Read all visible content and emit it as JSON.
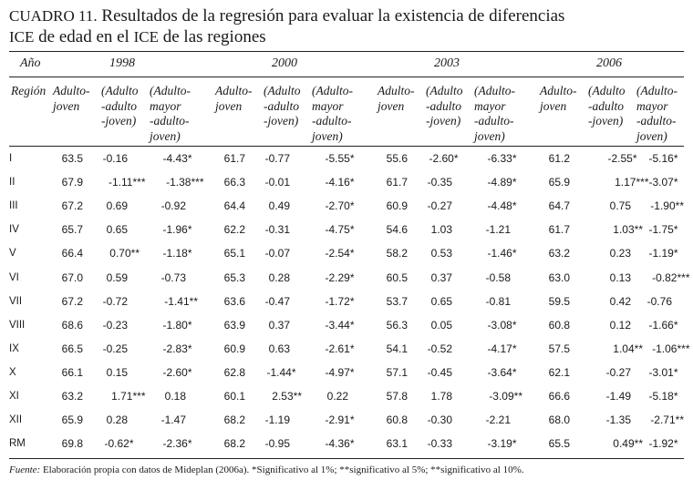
{
  "title": {
    "label": "CUADRO 11.",
    "line1": "Resultados de la regresión para evaluar la existencia de diferencias",
    "line2_ice1": "ICE",
    "line2_mid": " de edad en el ",
    "line2_ice2": "ICE",
    "line2_end": " de las regiones"
  },
  "header": {
    "ano_label": "Año",
    "region_label": "Región",
    "years": [
      "1998",
      "2000",
      "2003",
      "2006"
    ],
    "sub_headers": [
      [
        "Adulto-",
        "joven"
      ],
      [
        "(Adulto",
        "-adulto",
        "-joven)"
      ],
      [
        "(Adulto-",
        "mayor",
        "-adulto-",
        "joven)"
      ]
    ]
  },
  "rows": [
    {
      "region": "I",
      "values": [
        "63.5",
        "-0.16",
        "-4.43*",
        "61.7",
        "-0.77",
        "-5.55*",
        "55.6",
        "-2.60*",
        "-6.33*",
        "61.2",
        "-2.55*",
        "-5.16*"
      ]
    },
    {
      "region": "II",
      "values": [
        "67.9",
        "-1.11***",
        "-1.38***",
        "66.3",
        "-0.01",
        "-4.16*",
        "61.7",
        "-0.35",
        "-4.89*",
        "65.9",
        "1.17***",
        "-3.07*"
      ]
    },
    {
      "region": "III",
      "values": [
        "67.2",
        "0.69",
        "-0.92",
        "64.4",
        "0.49",
        "-2.70*",
        "60.9",
        "-0.27",
        "-4.48*",
        "64.7",
        "0.75",
        "-1.90**"
      ]
    },
    {
      "region": "IV",
      "values": [
        "65.7",
        "0.65",
        "-1.96*",
        "62.2",
        "-0.31",
        "-4.75*",
        "54.6",
        "1.03",
        "-1.21",
        "61.7",
        "1.03**",
        "-1.75*"
      ]
    },
    {
      "region": "V",
      "values": [
        "66.4",
        "0.70**",
        "-1.18*",
        "65.1",
        "-0.07",
        "-2.54*",
        "58.2",
        "0.53",
        "-1.46*",
        "63.2",
        "0.23",
        "-1.19*"
      ]
    },
    {
      "region": "VI",
      "values": [
        "67.0",
        "0.59",
        "-0.73",
        "65.3",
        "0.28",
        "-2.29*",
        "60.5",
        "0.37",
        "-0.58",
        "63.0",
        "0.13",
        "-0.82***"
      ]
    },
    {
      "region": "VII",
      "values": [
        "67.2",
        "-0.72",
        "-1.41**",
        "63.6",
        "-0.47",
        "-1.72*",
        "53.7",
        "0.65",
        "-0.81",
        "59.5",
        "0.42",
        "-0.76"
      ]
    },
    {
      "region": "VIII",
      "values": [
        "68.6",
        "-0.23",
        "-1.80*",
        "63.9",
        "0.37",
        "-3.44*",
        "56.3",
        "0.05",
        "-3.08*",
        "60.8",
        "0.12",
        "-1.66*"
      ]
    },
    {
      "region": "IX",
      "values": [
        "66.5",
        "-0.25",
        "-2.83*",
        "60.9",
        "0.63",
        "-2.61*",
        "54.1",
        "-0.52",
        "-4.17*",
        "57.5",
        "1.04**",
        "-1.06***"
      ]
    },
    {
      "region": "X",
      "values": [
        "66.1",
        "0.15",
        "-2.60*",
        "62.8",
        "-1.44*",
        "-4.97*",
        "57.1",
        "-0.45",
        "-3.64*",
        "62.1",
        "-0.27",
        "-3.01*"
      ]
    },
    {
      "region": "XI",
      "values": [
        "63.2",
        "1.71***",
        "0.18",
        "60.1",
        "2.53**",
        "0.22",
        "57.8",
        "1.78",
        "-3.09**",
        "66.6",
        "-1.49",
        "-5.18*"
      ]
    },
    {
      "region": "XII",
      "values": [
        "65.9",
        "0.28",
        "-1.47",
        "68.2",
        "-1.19",
        "-2.91*",
        "60.8",
        "-0.30",
        "-2.21",
        "68.0",
        "-1.35",
        "-2.71**"
      ]
    },
    {
      "region": "RM",
      "values": [
        "69.8",
        "-0.62*",
        "-2.36*",
        "68.2",
        "-0.95",
        "-4.36*",
        "63.1",
        "-0.33",
        "-3.19*",
        "65.5",
        "0.49**",
        "-1.92*"
      ]
    }
  ],
  "footnote": {
    "label": "Fuente:",
    "text": " Elaboración propia con datos de Mideplan (2006a). *Significativo al 1%; **significativo al 5%; **significativo al 10%."
  }
}
